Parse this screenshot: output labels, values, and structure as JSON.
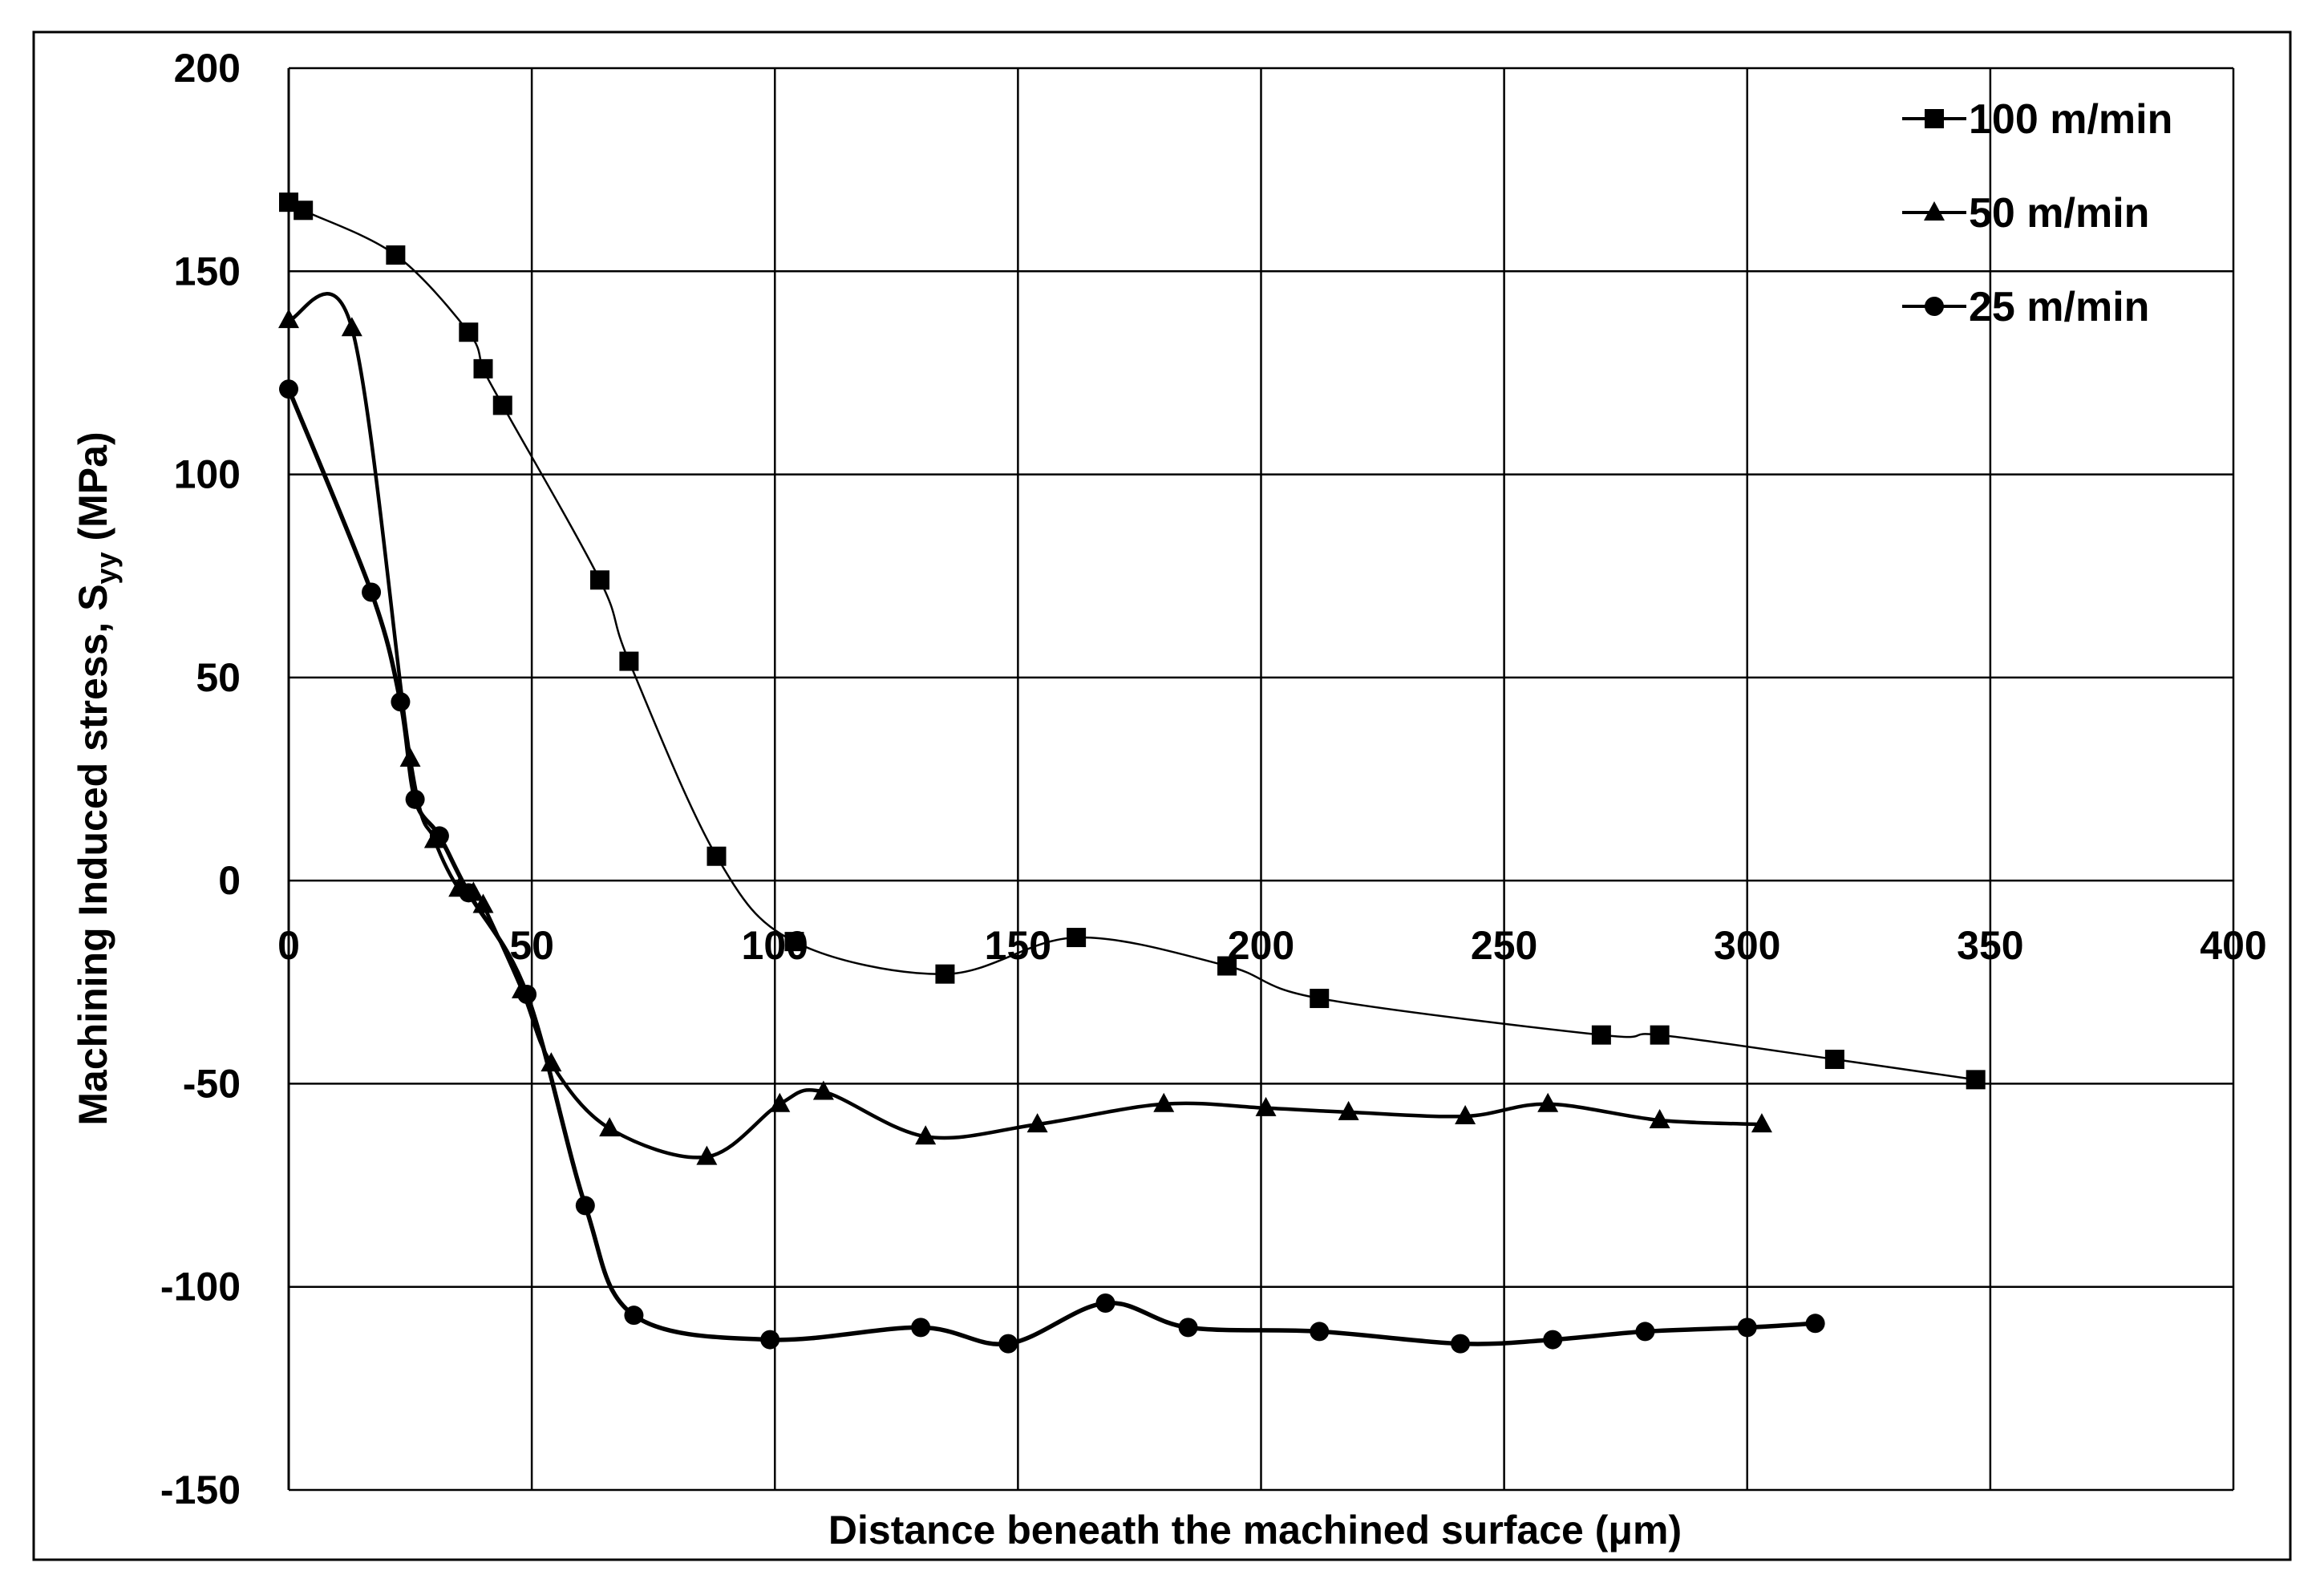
{
  "chart_data": {
    "type": "line",
    "title": "",
    "xlabel": "Distance beneath the machined surface (μm)",
    "ylabel_main": "Machining Induced stress, S",
    "ylabel_sub": "yy",
    "ylabel_unit": " (MPa)",
    "xlim": [
      0,
      400
    ],
    "ylim": [
      -150,
      200
    ],
    "x_ticks": [
      0,
      50,
      100,
      150,
      200,
      250,
      300,
      350,
      400
    ],
    "x_tick_labels": [
      "0",
      "50",
      "100",
      "150",
      "200",
      "250",
      "300",
      "350",
      "400"
    ],
    "y_ticks": [
      -150,
      -100,
      -50,
      0,
      50,
      100,
      150,
      200
    ],
    "y_tick_labels": [
      "-150",
      "-100",
      "-50",
      "0",
      "50",
      "100",
      "150",
      "200"
    ],
    "grid": true,
    "legend_position": "top-right",
    "series": [
      {
        "name": "100 m/min",
        "marker": "square",
        "points": [
          [
            0,
            167
          ],
          [
            3,
            165
          ],
          [
            22,
            154
          ],
          [
            37,
            135
          ],
          [
            40,
            126
          ],
          [
            44,
            117
          ],
          [
            64,
            74
          ],
          [
            70,
            54
          ],
          [
            88,
            6
          ],
          [
            104,
            -15
          ],
          [
            135,
            -23
          ],
          [
            162,
            -14
          ],
          [
            193,
            -21
          ],
          [
            212,
            -29
          ],
          [
            270,
            -38
          ],
          [
            282,
            -38
          ],
          [
            318,
            -44
          ],
          [
            347,
            -49
          ]
        ]
      },
      {
        "name": "50 m/min",
        "marker": "triangle",
        "points": [
          [
            0,
            138
          ],
          [
            13,
            136
          ],
          [
            25,
            30
          ],
          [
            30,
            10
          ],
          [
            35,
            -2
          ],
          [
            38,
            -3
          ],
          [
            40,
            -6
          ],
          [
            48,
            -27
          ],
          [
            54,
            -45
          ],
          [
            66,
            -61
          ],
          [
            86,
            -68
          ],
          [
            101,
            -55
          ],
          [
            110,
            -52
          ],
          [
            131,
            -63
          ],
          [
            154,
            -60
          ],
          [
            180,
            -55
          ],
          [
            201,
            -56
          ],
          [
            218,
            -57
          ],
          [
            242,
            -58
          ],
          [
            259,
            -55
          ],
          [
            282,
            -59
          ],
          [
            303,
            -60
          ]
        ]
      },
      {
        "name": "25 m/min",
        "marker": "circle",
        "points": [
          [
            0,
            121
          ],
          [
            17,
            71
          ],
          [
            23,
            44
          ],
          [
            26,
            20
          ],
          [
            31,
            11
          ],
          [
            37,
            -3
          ],
          [
            49,
            -28
          ],
          [
            61,
            -80
          ],
          [
            71,
            -107
          ],
          [
            99,
            -113
          ],
          [
            130,
            -110
          ],
          [
            148,
            -114
          ],
          [
            168,
            -104
          ],
          [
            185,
            -110
          ],
          [
            212,
            -111
          ],
          [
            241,
            -114
          ],
          [
            260,
            -113
          ],
          [
            279,
            -111
          ],
          [
            300,
            -110
          ],
          [
            314,
            -109
          ]
        ]
      }
    ]
  }
}
